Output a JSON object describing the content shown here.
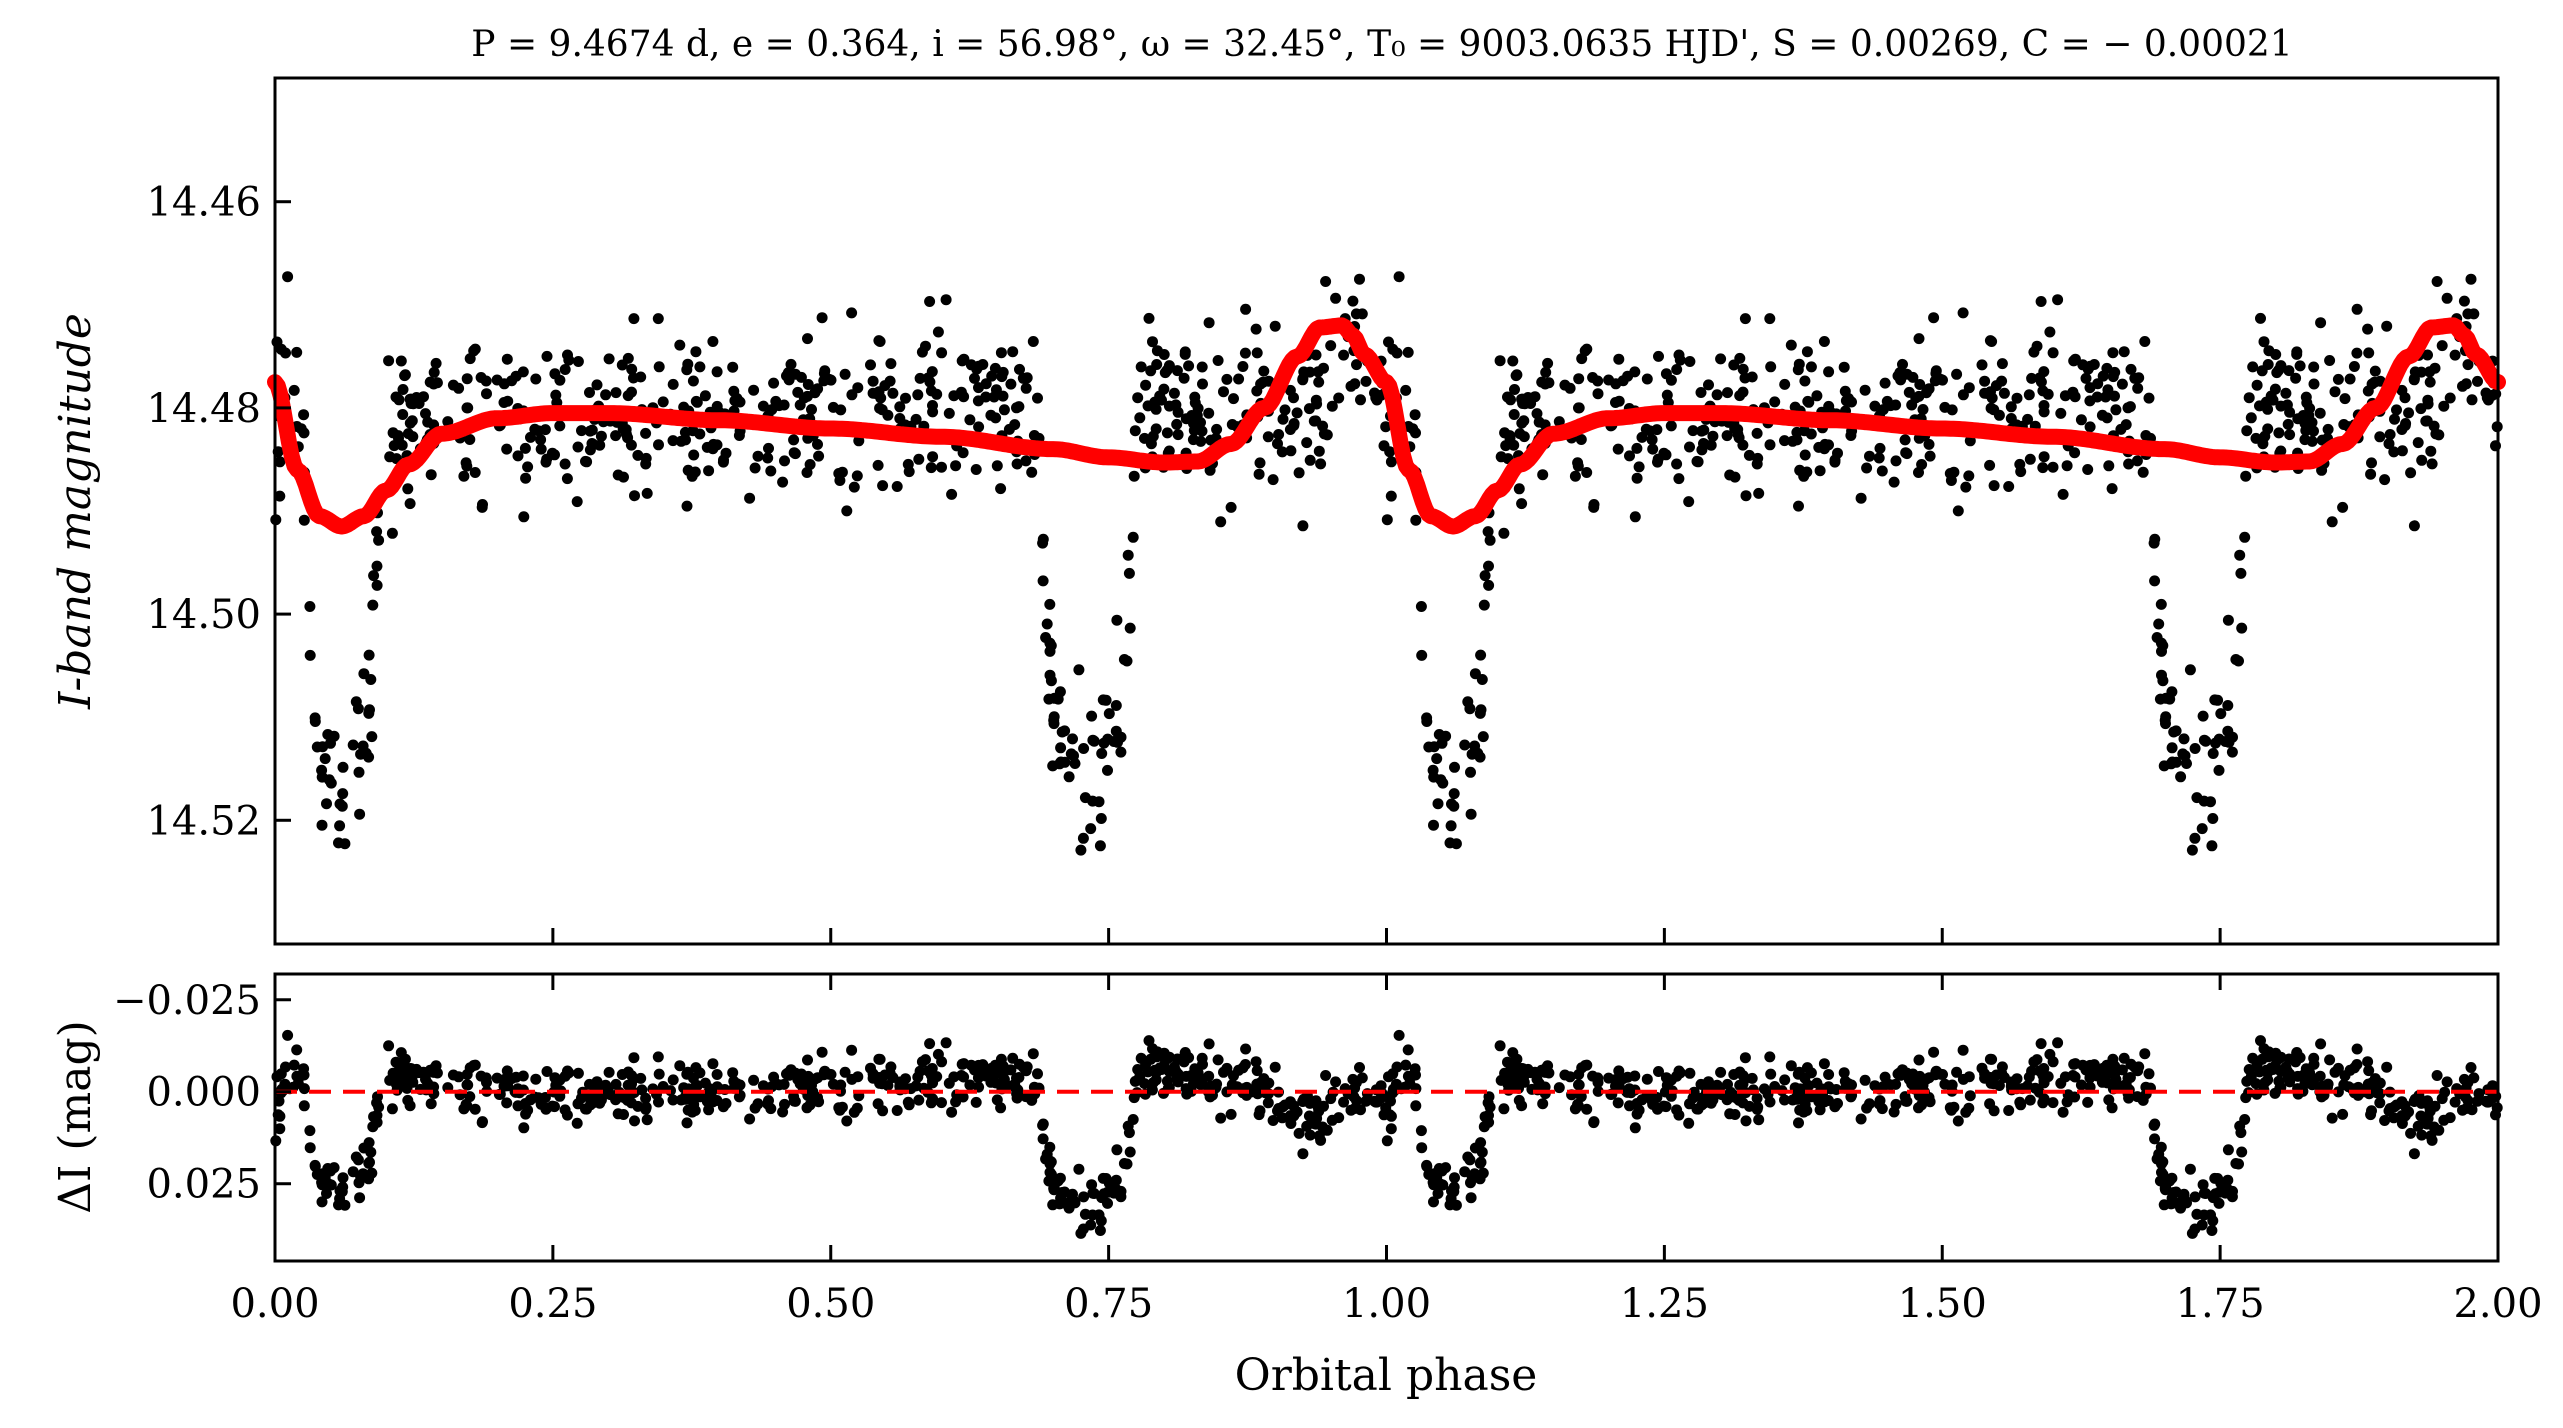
{
  "chart_data": [
    {
      "type": "scatter",
      "panel": "top",
      "title": "P = 9.4674 d, e = 0.364, i = 56.98°, ω = 32.45°, T₀ = 9003.0635 HJD', S = 0.00269, C = − 0.00021",
      "xlabel": "",
      "ylabel": "I-band magnitude",
      "xlim": [
        0.0,
        2.0
      ],
      "ylim": [
        14.532,
        14.448
      ],
      "y_inverted": true,
      "yticks": [
        14.46,
        14.48,
        14.5,
        14.52
      ],
      "ytick_labels": [
        "14.46",
        "14.48",
        "14.50",
        "14.52"
      ],
      "series": [
        {
          "name": "observed",
          "style": "points",
          "color": "#000000",
          "description": "noisy photometric points; baseline ~14.480, scatter ~0.004 mag",
          "primary_dip": {
            "phase": 0.06,
            "depth_mag": 0.036,
            "half_width": 0.035
          },
          "secondary_dip": {
            "phase": 0.73,
            "depth_mag": 0.034,
            "half_width": 0.045
          },
          "count_per_cycle": 700
        },
        {
          "name": "model",
          "style": "line",
          "color": "#ff0000",
          "x": [
            0.0,
            0.02,
            0.04,
            0.06,
            0.08,
            0.1,
            0.12,
            0.15,
            0.2,
            0.25,
            0.3,
            0.4,
            0.5,
            0.6,
            0.7,
            0.75,
            0.8,
            0.83,
            0.86,
            0.89,
            0.92,
            0.94,
            0.96,
            0.97,
            0.98,
            1.0
          ],
          "y": [
            14.4775,
            14.486,
            14.4905,
            14.4915,
            14.4905,
            14.488,
            14.4855,
            14.4825,
            14.481,
            14.4805,
            14.4805,
            14.4812,
            14.482,
            14.4828,
            14.484,
            14.4848,
            14.4853,
            14.4852,
            14.4835,
            14.48,
            14.475,
            14.4722,
            14.472,
            14.473,
            14.4748,
            14.4775
          ]
        }
      ]
    },
    {
      "type": "scatter",
      "panel": "bottom",
      "title": "",
      "xlabel": "Orbital phase",
      "ylabel": "ΔI (mag)",
      "xlim": [
        0.0,
        2.0
      ],
      "ylim": [
        0.046,
        -0.032
      ],
      "y_inverted": true,
      "xticks": [
        0.0,
        0.25,
        0.5,
        0.75,
        1.0,
        1.25,
        1.5,
        1.75,
        2.0
      ],
      "xtick_labels": [
        "0.00",
        "0.25",
        "0.50",
        "0.75",
        "1.00",
        "1.25",
        "1.50",
        "1.75",
        "2.00"
      ],
      "yticks": [
        -0.025,
        0.0,
        0.025
      ],
      "ytick_labels": [
        "−0.025",
        "0.000",
        "0.025"
      ],
      "series": [
        {
          "name": "residuals",
          "style": "points",
          "color": "#000000",
          "description": "residuals ~0 with scatter ~0.005; dips of +0.020 at phase 0.05–0.10 and +0.028 at 0.70–0.78"
        },
        {
          "name": "zero-line",
          "style": "dashed",
          "color": "#ff0000",
          "y": 0.0
        }
      ]
    }
  ]
}
